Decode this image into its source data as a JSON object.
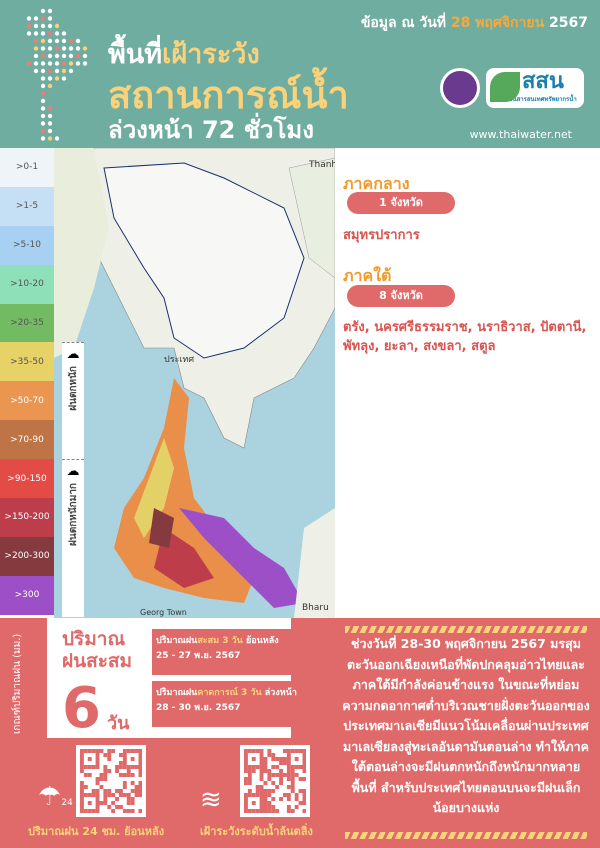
{
  "header": {
    "title_line1_white": "พื้นที่",
    "title_line1_yellow": "เฝ้าระวัง",
    "title_line2": "สถานการณ์น้ำ",
    "title_line3": "ล่วงหน้า 72 ชั่วโมง",
    "date_prefix": "ข้อมูล ณ วันที่",
    "date_value": "28 พฤศจิกายน",
    "date_year": "2567",
    "website": "www.thaiwater.net",
    "logo_text": "สสน",
    "logo_subtext": "สถาบันสารสนเทศทรัพยากรน้ำ"
  },
  "legend": {
    "title": "เกณฑ์ปริมาณฝน (มม.)",
    "items": [
      {
        "label": ">0-1",
        "color": "#eef4f8"
      },
      {
        "label": ">1-5",
        "color": "#c5dff5"
      },
      {
        "label": ">5-10",
        "color": "#a8d0f2"
      },
      {
        "label": ">10-20",
        "color": "#8ee0b8"
      },
      {
        "label": ">20-35",
        "color": "#72bb62"
      },
      {
        "label": ">35-50",
        "color": "#e6d266"
      },
      {
        "label": ">50-70",
        "color": "#ea9650"
      },
      {
        "label": ">70-90",
        "color": "#bf7445"
      },
      {
        "label": ">90-150",
        "color": "#e34c46"
      },
      {
        "label": ">150-200",
        "color": "#bd3e4a"
      },
      {
        "label": ">200-300",
        "color": "#843a3f"
      },
      {
        "label": ">300",
        "color": "#9d4fc7"
      }
    ],
    "heavy": "ฝนตกหนัก",
    "very_heavy": "ฝนตกหนักมาก"
  },
  "map": {
    "labels": [
      "Thanh",
      "Georg Town",
      "Bharu",
      "ประเทศ"
    ]
  },
  "regions": [
    {
      "name": "ภาคกลาง",
      "count": "1 จังหวัด",
      "provinces": "สมุทรปราการ"
    },
    {
      "name": "ภาคใต้",
      "count": "8 จังหวัด",
      "provinces": "ตรัง, นครศรีธรรมราช, นราธิวาส, ปัตตานี, พัทลุง, ยะลา, สงขลา, สตูล"
    }
  ],
  "accum": {
    "title1": "ปริมาณ",
    "title2": "ฝนสะสม",
    "days": "6",
    "days_unit": "วัน",
    "past": {
      "prefix": "ปริมาณฝน",
      "highlight": "สะสม 3 วัน",
      "suffix": " ย้อนหลัง",
      "range": "25 - 27 พ.ย. 2567"
    },
    "future": {
      "prefix": "ปริมาณฝน",
      "highlight": "คาดการณ์ 3 วัน",
      "suffix": " ล่วงหน้า",
      "range": "28 - 30 พ.ย. 2567"
    }
  },
  "qr": {
    "rain_label": "ปริมาณฝน 24 ชม. ย้อนหลัง",
    "rain_icon_num": "24",
    "flood_label": "เฝ้าระวังระดับน้ำล้นตลิ่ง"
  },
  "description": "ช่วงวันที่ 28-30 พฤศจิกายน 2567 มรสุมตะวันออกเฉียงเหนือที่พัดปกคลุมอ่าวไทยและภาคใต้มีกำลังค่อนข้างแรง ในขณะที่หย่อมความกดอากาศต่ำบริเวณชายฝั่งตะวันออกของประเทศมาเลเซียมีแนวโน้มเคลื่อนผ่านประเทศมาเลเซียลงสู่ทะเลอันดามันตอนล่าง ทำให้ภาคใต้ตอนล่างจะมีฝนตกหนักถึงหนักมากหลายพื้นที่ สำหรับประเทศไทยตอนบนจะมีฝนเล็กน้อยบางแห่ง"
}
